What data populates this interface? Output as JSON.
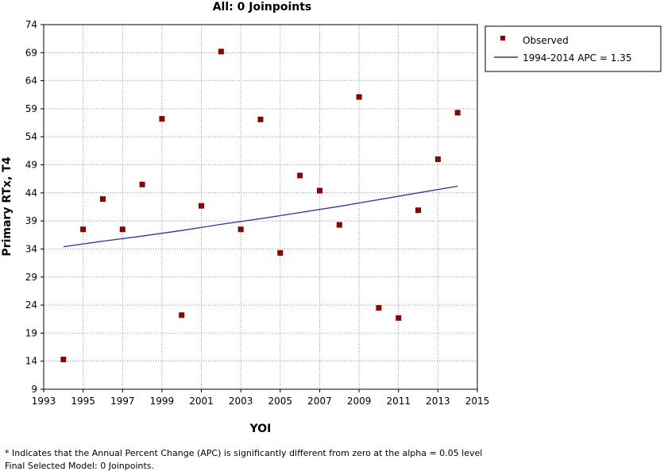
{
  "chart_data": {
    "type": "scatter",
    "title": "All: 0 Joinpoints",
    "xlabel": "YOI",
    "ylabel": "Primary RTx, T4",
    "xlim": [
      1993,
      2015
    ],
    "ylim": [
      9,
      74
    ],
    "x_ticks": [
      1993,
      1995,
      1997,
      1999,
      2001,
      2003,
      2005,
      2007,
      2009,
      2011,
      2013,
      2015
    ],
    "y_ticks": [
      9,
      14,
      19,
      24,
      29,
      34,
      39,
      44,
      49,
      54,
      59,
      64,
      69,
      74
    ],
    "x_tick_labels": [
      "1993",
      "1995",
      "1997",
      "1999",
      "2001",
      "2003",
      "2005",
      "2007",
      "2009",
      "2011",
      "2013",
      "2015"
    ],
    "y_tick_labels": [
      "9",
      "14",
      "19",
      "24",
      "29",
      "34",
      "39",
      "44",
      "49",
      "54",
      "59",
      "64",
      "69",
      "74"
    ],
    "grid": true,
    "series": [
      {
        "name": "Observed",
        "kind": "points",
        "color": "#8b0000",
        "x": [
          1994,
          1995,
          1996,
          1997,
          1998,
          1999,
          2000,
          2001,
          2002,
          2003,
          2004,
          2005,
          2006,
          2007,
          2008,
          2009,
          2010,
          2011,
          2012,
          2013,
          2014
        ],
        "y": [
          14.3,
          37.5,
          42.9,
          37.5,
          45.5,
          57.2,
          22.2,
          41.7,
          69.2,
          37.5,
          57.1,
          33.3,
          47.1,
          44.4,
          38.3,
          61.1,
          23.5,
          21.7,
          40.9,
          50.0,
          58.3
        ]
      },
      {
        "name": "1994-2014 APC  = 1.35",
        "kind": "line",
        "color": "#3333aa",
        "x": [
          1994,
          1996,
          1998,
          2000,
          2002,
          2004,
          2006,
          2008,
          2010,
          2012,
          2014
        ],
        "y": [
          34.4,
          35.4,
          36.3,
          37.3,
          38.4,
          39.4,
          40.5,
          41.6,
          42.8,
          44.0,
          45.2
        ]
      }
    ],
    "legend": {
      "position": "top-right",
      "entries": [
        "Observed",
        "1994-2014 APC  = 1.35"
      ]
    }
  },
  "footnotes": {
    "line1": "* Indicates that the Annual Percent Change (APC) is significantly different from zero at the alpha = 0.05 level",
    "line2": "Final Selected Model: 0 Joinpoints."
  }
}
